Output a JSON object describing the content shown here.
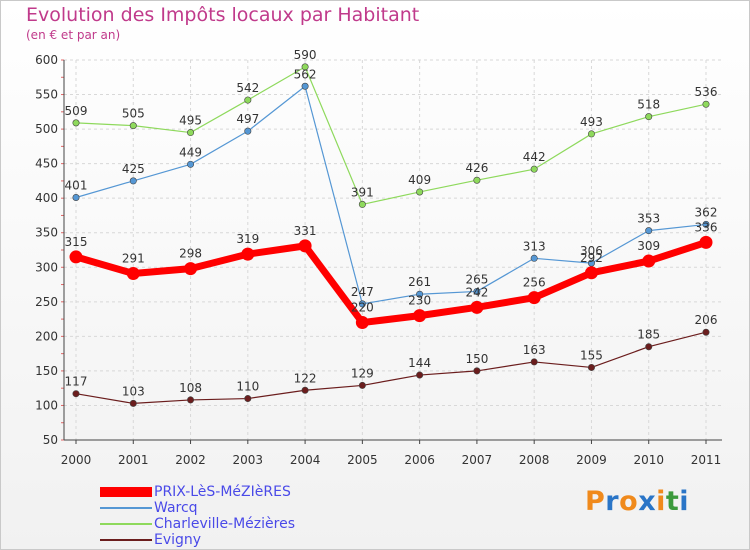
{
  "title": "Evolution des Impôts locaux par Habitant",
  "subtitle": "(en € et par an)",
  "brand": {
    "text": "Proxiti",
    "letter_colors": [
      "#f08a1c",
      "#2a75c7",
      "#f08a1c",
      "#2a75c7",
      "#f08a1c",
      "#3c9a3c",
      "#2a75c7"
    ]
  },
  "chart_data": {
    "type": "line",
    "x": [
      "2000",
      "2001",
      "2002",
      "2003",
      "2004",
      "2005",
      "2006",
      "2007",
      "2008",
      "2009",
      "2010",
      "2011"
    ],
    "ylim": [
      50,
      600
    ],
    "yticks": [
      50,
      100,
      150,
      200,
      250,
      300,
      350,
      400,
      450,
      500,
      550,
      600
    ],
    "series": [
      {
        "name": "Evigny",
        "color": "#6b1d1d",
        "values": [
          117,
          103,
          108,
          110,
          122,
          129,
          144,
          150,
          163,
          155,
          185,
          206
        ]
      },
      {
        "name": "Charleville-Mézières",
        "color": "#8ed95c",
        "values": [
          509,
          505,
          495,
          542,
          590,
          391,
          409,
          426,
          442,
          493,
          518,
          536
        ]
      },
      {
        "name": "Warcq",
        "color": "#5597d4",
        "values": [
          401,
          425,
          449,
          497,
          562,
          247,
          261,
          265,
          313,
          306,
          353,
          362
        ]
      },
      {
        "name": "PRIX-LèS-MéZIèRES",
        "color": "#ff0000",
        "values": [
          315,
          291,
          298,
          319,
          331,
          220,
          230,
          242,
          256,
          292,
          309,
          336
        ]
      }
    ],
    "legend": [
      "PRIX-LèS-MéZIèRES",
      "Warcq",
      "Charleville-Mézières",
      "Evigny"
    ],
    "grid": true,
    "legend_position": "bottom-left"
  }
}
